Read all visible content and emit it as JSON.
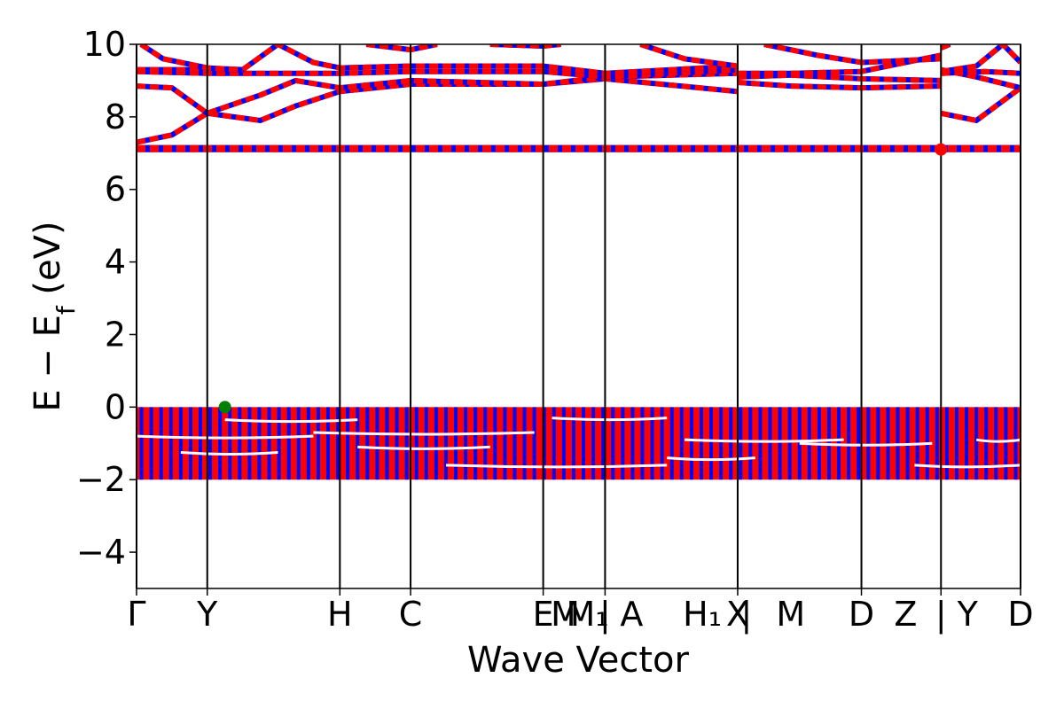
{
  "chart_data": {
    "type": "line",
    "title": "",
    "xlabel": "Wave Vector",
    "ylabel": "E − E_f (eV)",
    "ylabel_parts": {
      "main": "E − E",
      "sub": "f",
      "unit": " (eV)"
    },
    "ylim": [
      -5,
      10
    ],
    "yticks": [
      -4,
      -2,
      0,
      2,
      4,
      6,
      8,
      10
    ],
    "ytick_labels": [
      "−4",
      "−2",
      "0",
      "2",
      "4",
      "6",
      "8",
      "10"
    ],
    "xlim": [
      0,
      1
    ],
    "kpoint_lines": [
      0.0,
      0.08,
      0.23,
      0.31,
      0.46,
      0.53,
      0.68,
      0.82,
      0.91,
      1.0
    ],
    "kpoint_labels": [
      {
        "x": 0.0,
        "label": "Γ"
      },
      {
        "x": 0.08,
        "label": "Y"
      },
      {
        "x": 0.23,
        "label": "H"
      },
      {
        "x": 0.31,
        "label": "C"
      },
      {
        "x": 0.46,
        "label": "E"
      },
      {
        "x": 0.485,
        "label": "M"
      },
      {
        "x": 0.51,
        "label": "M₁"
      },
      {
        "x": 0.53,
        "label": "|"
      },
      {
        "x": 0.56,
        "label": "A"
      },
      {
        "x": 0.64,
        "label": "H₁"
      },
      {
        "x": 0.68,
        "label": "X"
      },
      {
        "x": 0.69,
        "label": "|"
      },
      {
        "x": 0.74,
        "label": "M"
      },
      {
        "x": 0.82,
        "label": "D"
      },
      {
        "x": 0.87,
        "label": "Z"
      },
      {
        "x": 0.91,
        "label": "|"
      },
      {
        "x": 0.94,
        "label": "Y"
      },
      {
        "x": 1.0,
        "label": "D"
      }
    ],
    "series": [
      {
        "color": "#0000ff",
        "style": "solid"
      },
      {
        "color": "#ff0000",
        "style": "dashed"
      }
    ],
    "valence_band_region": {
      "energy_min": -2.0,
      "energy_max": 0.0
    },
    "conduction_bands": [
      {
        "points": [
          [
            0,
            7.1
          ],
          [
            1,
            7.1
          ]
        ]
      },
      {
        "points": [
          [
            0,
            7.15
          ],
          [
            1,
            7.15
          ]
        ]
      },
      {
        "points": [
          [
            0,
            7.3
          ],
          [
            0.04,
            7.5
          ],
          [
            0.08,
            8.1
          ],
          [
            0.14,
            7.9
          ],
          [
            0.18,
            8.3
          ],
          [
            0.23,
            8.7
          ],
          [
            0.31,
            8.9
          ],
          [
            0.46,
            8.9
          ],
          [
            0.53,
            9.05
          ],
          [
            0.68,
            8.7
          ]
        ]
      },
      {
        "points": [
          [
            0,
            8.85
          ],
          [
            0.04,
            8.8
          ],
          [
            0.08,
            8.1
          ],
          [
            0.14,
            8.6
          ],
          [
            0.18,
            9.0
          ],
          [
            0.23,
            8.8
          ],
          [
            0.31,
            9.0
          ],
          [
            0.46,
            8.9
          ],
          [
            0.53,
            9.1
          ],
          [
            0.68,
            9.2
          ]
        ]
      },
      {
        "points": [
          [
            0,
            9.25
          ],
          [
            0.08,
            9.2
          ],
          [
            0.23,
            9.2
          ],
          [
            0.31,
            9.25
          ],
          [
            0.46,
            9.25
          ],
          [
            0.53,
            9.1
          ],
          [
            0.68,
            9.3
          ]
        ]
      },
      {
        "points": [
          [
            0,
            9.3
          ],
          [
            0.08,
            9.3
          ],
          [
            0.12,
            9.3
          ],
          [
            0.16,
            10.0
          ],
          [
            0.2,
            9.5
          ],
          [
            0.23,
            9.35
          ],
          [
            0.31,
            9.4
          ],
          [
            0.46,
            9.4
          ],
          [
            0.53,
            9.2
          ],
          [
            0.68,
            9.4
          ]
        ]
      },
      {
        "points": [
          [
            0.005,
            10.0
          ],
          [
            0.03,
            9.6
          ],
          [
            0.08,
            9.35
          ],
          [
            0.12,
            9.3
          ]
        ]
      },
      {
        "points": [
          [
            0.26,
            10.0
          ],
          [
            0.31,
            9.85
          ],
          [
            0.34,
            10.0
          ]
        ]
      },
      {
        "points": [
          [
            0.4,
            10.0
          ],
          [
            0.46,
            9.95
          ],
          [
            0.48,
            10.0
          ]
        ]
      },
      {
        "points": [
          [
            0.57,
            10.0
          ],
          [
            0.62,
            9.6
          ],
          [
            0.68,
            9.4
          ]
        ]
      },
      {
        "points": [
          [
            0.68,
            9.1
          ],
          [
            0.74,
            9.15
          ],
          [
            0.82,
            9.05
          ],
          [
            0.91,
            9.0
          ]
        ]
      },
      {
        "points": [
          [
            0.68,
            8.95
          ],
          [
            0.74,
            8.85
          ],
          [
            0.82,
            8.8
          ],
          [
            0.91,
            8.85
          ]
        ]
      },
      {
        "points": [
          [
            0.68,
            9.2
          ],
          [
            0.74,
            9.2
          ],
          [
            0.82,
            9.25
          ],
          [
            0.91,
            9.7
          ]
        ]
      },
      {
        "points": [
          [
            0.71,
            10.0
          ],
          [
            0.77,
            9.7
          ],
          [
            0.82,
            9.5
          ],
          [
            0.91,
            9.6
          ]
        ]
      },
      {
        "points": [
          [
            0.91,
            8.1
          ],
          [
            0.95,
            7.9
          ],
          [
            1.0,
            8.8
          ]
        ]
      },
      {
        "points": [
          [
            0.91,
            9.3
          ],
          [
            0.95,
            9.1
          ],
          [
            1.0,
            8.8
          ]
        ]
      },
      {
        "points": [
          [
            0.91,
            9.2
          ],
          [
            0.96,
            9.25
          ],
          [
            1.0,
            9.2
          ]
        ]
      },
      {
        "points": [
          [
            0.91,
            9.25
          ],
          [
            0.95,
            9.4
          ],
          [
            0.98,
            10.0
          ],
          [
            1.0,
            9.5
          ]
        ]
      },
      {
        "points": [
          [
            0.91,
            9.9
          ],
          [
            0.92,
            10.0
          ]
        ]
      }
    ],
    "markers": [
      {
        "x": 0.1,
        "y": 0.0,
        "color": "#008000",
        "meaning": "valence band maximum"
      },
      {
        "x": 0.91,
        "y": 7.1,
        "color": "#ff0000",
        "meaning": "conduction band minimum"
      }
    ],
    "grid": false,
    "legend": "none"
  }
}
